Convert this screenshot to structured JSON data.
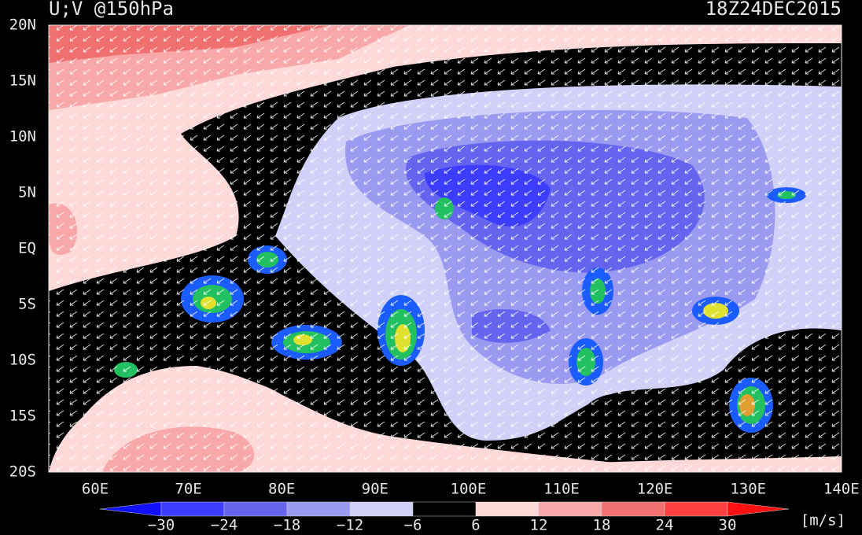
{
  "header": {
    "title": "U;V @150hPa",
    "time": "18Z24DEC2015"
  },
  "map": {
    "lat_labels": [
      "20N",
      "15N",
      "10N",
      "5N",
      "EQ",
      "5S",
      "10S",
      "15S",
      "20S"
    ],
    "lon_labels": [
      "60E",
      "70E",
      "80E",
      "90E",
      "100E",
      "110E",
      "120E",
      "130E",
      "140E"
    ]
  },
  "colorbar": {
    "labels": [
      "−30",
      "−24",
      "−18",
      "−12",
      "−6",
      "6",
      "12",
      "18",
      "24",
      "30"
    ],
    "colors": [
      "#1010ff",
      "#3d3dff",
      "#6464ef",
      "#9a9af0",
      "#d0d0f8",
      "#000000",
      "#ffd8d8",
      "#f8a8a8",
      "#f07070",
      "#ff4040",
      "#ff1010"
    ],
    "unit": "[m/s]"
  }
}
